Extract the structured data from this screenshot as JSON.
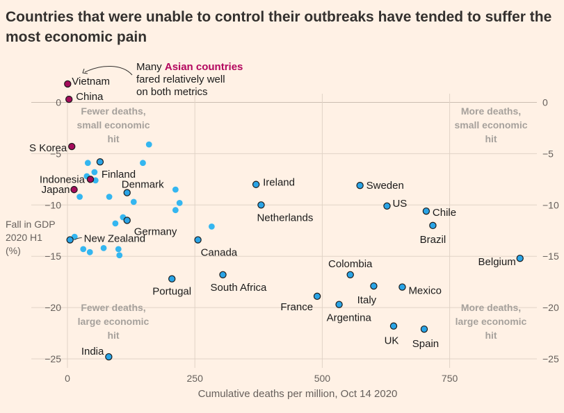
{
  "title": "Countries that were unable to control their outbreaks have tended to suffer the most economic pain",
  "colors": {
    "background": "#fff1e5",
    "grid": "#e0d3c6",
    "asian": "#a40c5b",
    "other": "#34b6f0",
    "labelled": "#2aa4e6",
    "highlight": "#b3065e"
  },
  "annotation": {
    "line1_prefix": "Many ",
    "line1_highlight": "Asian countries",
    "line2": "fared relatively well",
    "line3": "on both metrics"
  },
  "quadrant_labels": {
    "top_left": [
      "Fewer deaths,",
      "small economic",
      "hit"
    ],
    "top_right": [
      "More deaths,",
      "small economic",
      "hit"
    ],
    "bottom_left": [
      "Fewer deaths,",
      "large economic",
      "hit"
    ],
    "bottom_right": [
      "More deaths,",
      "large economic",
      "hit"
    ]
  },
  "chart_data": {
    "type": "scatter",
    "title": "Countries that were unable to control their outbreaks have tended to suffer the most economic pain",
    "xlabel": "Cumulative deaths per million, Oct 14 2020",
    "ylabel": [
      "Fall in GDP",
      "2020 H1",
      "(%)"
    ],
    "xlim": [
      0,
      950
    ],
    "ylim": [
      -25.5,
      2.5
    ],
    "x_ticks": [
      0,
      250,
      500,
      750
    ],
    "y_ticks": [
      0,
      -5,
      -10,
      -15,
      -20,
      -25
    ],
    "y_tick_labels": [
      "0",
      "−5",
      "−10",
      "−15",
      "−20",
      "−25"
    ],
    "grid": true,
    "series": [
      {
        "group": "asian",
        "points": [
          {
            "label": "Vietnam",
            "x": 0.4,
            "y": 1.8
          },
          {
            "label": "China",
            "x": 3,
            "y": 0.3
          },
          {
            "label": "S Korea",
            "x": 8.5,
            "y": -4.3
          },
          {
            "label": "Indonesia",
            "x": 45,
            "y": -7.5
          },
          {
            "label": "Japan",
            "x": 13,
            "y": -8.5
          }
        ]
      },
      {
        "group": "labelled",
        "points": [
          {
            "label": "Finland",
            "x": 64,
            "y": -5.8
          },
          {
            "label": "Denmark",
            "x": 117,
            "y": -8.8
          },
          {
            "label": "Germany",
            "x": 117,
            "y": -11.5
          },
          {
            "label": "New Zealand",
            "x": 5,
            "y": -13.4
          },
          {
            "label": "Canada",
            "x": 256,
            "y": -13.4
          },
          {
            "label": "Ireland",
            "x": 370,
            "y": -8
          },
          {
            "label": "Netherlands",
            "x": 380,
            "y": -10
          },
          {
            "label": "Sweden",
            "x": 574,
            "y": -8.1
          },
          {
            "label": "US",
            "x": 627,
            "y": -10.1
          },
          {
            "label": "Chile",
            "x": 704,
            "y": -10.6
          },
          {
            "label": "Brazil",
            "x": 717,
            "y": -12
          },
          {
            "label": "Belgium",
            "x": 888,
            "y": -15.2
          },
          {
            "label": "Portugal",
            "x": 205,
            "y": -17.2
          },
          {
            "label": "South Africa",
            "x": 305,
            "y": -16.8
          },
          {
            "label": "Colombia",
            "x": 555,
            "y": -16.8
          },
          {
            "label": "Italy",
            "x": 601,
            "y": -17.9
          },
          {
            "label": "Mexico",
            "x": 657,
            "y": -18
          },
          {
            "label": "France",
            "x": 490,
            "y": -18.9
          },
          {
            "label": "Argentina",
            "x": 533,
            "y": -19.7
          },
          {
            "label": "UK",
            "x": 640,
            "y": -21.8
          },
          {
            "label": "Spain",
            "x": 700,
            "y": -22.1
          },
          {
            "label": "India",
            "x": 81,
            "y": -24.8
          }
        ]
      },
      {
        "group": "other",
        "points": [
          {
            "x": 160,
            "y": -4.1
          },
          {
            "x": 148,
            "y": -5.9
          },
          {
            "x": 40,
            "y": -5.9
          },
          {
            "x": 53,
            "y": -6.8
          },
          {
            "x": 38,
            "y": -7.2
          },
          {
            "x": 55,
            "y": -7.6
          },
          {
            "x": 212,
            "y": -8.5
          },
          {
            "x": 24,
            "y": -9.2
          },
          {
            "x": 82,
            "y": -9.2
          },
          {
            "x": 130,
            "y": -9.7
          },
          {
            "x": 220,
            "y": -9.8
          },
          {
            "x": 212,
            "y": -10.5
          },
          {
            "x": 109,
            "y": -11.2
          },
          {
            "x": 94,
            "y": -11.8
          },
          {
            "x": 283,
            "y": -12.1
          },
          {
            "x": 14,
            "y": -13.1
          },
          {
            "x": 31,
            "y": -14.3
          },
          {
            "x": 71,
            "y": -14.2
          },
          {
            "x": 100,
            "y": -14.3
          },
          {
            "x": 44,
            "y": -14.6
          },
          {
            "x": 102,
            "y": -14.9
          }
        ]
      }
    ]
  }
}
